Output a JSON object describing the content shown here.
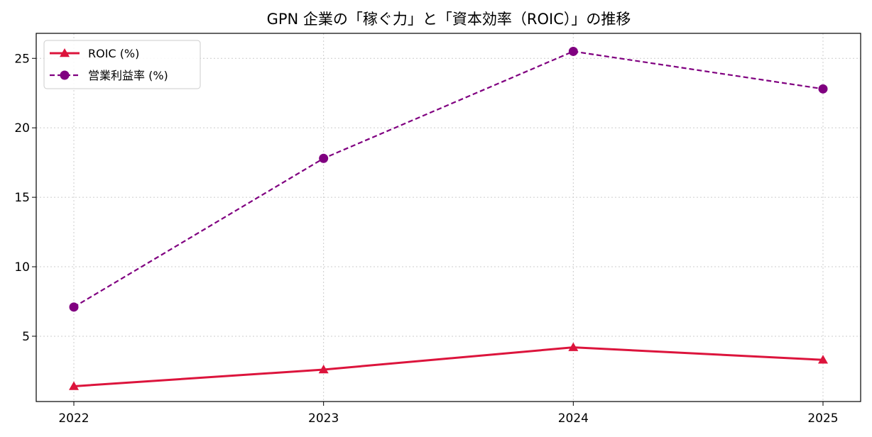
{
  "chart_data": {
    "type": "line",
    "title": "GPN 企業の「稼ぐ力」と「資本効率（ROIC）」の推移",
    "xlabel": "",
    "ylabel": "",
    "categories": [
      "2022",
      "2023",
      "2024",
      "2025"
    ],
    "ylim": [
      0.3,
      26.8
    ],
    "yticks": [
      "5",
      "10",
      "15",
      "20",
      "25"
    ],
    "grid": true,
    "legend_position": "top-left",
    "series": [
      {
        "name": "ROIC (%)",
        "values": [
          1.4,
          2.6,
          4.2,
          3.3
        ],
        "color": "#dc143c",
        "style": "solid",
        "marker": "triangle"
      },
      {
        "name": "営業利益率 (%)",
        "values": [
          7.1,
          17.8,
          25.5,
          22.8
        ],
        "color": "#800080",
        "style": "dashed",
        "marker": "circle"
      }
    ]
  }
}
